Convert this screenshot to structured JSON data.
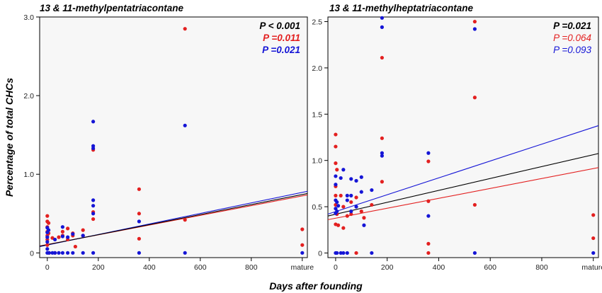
{
  "figure": {
    "ylabel": "Percentage of total CHCs",
    "xlabel": "Days after founding"
  },
  "colors": {
    "all": "#000000",
    "red": "#e32020",
    "blue": "#1515d6",
    "plot_bg": "#f7f7f7"
  },
  "chart_data": [
    {
      "type": "scatter",
      "title": "13 & 11-methylpentatriacontane",
      "xlim": [
        -30,
        1020
      ],
      "ylim": [
        -0.06,
        3.0
      ],
      "x_ticks": [
        0,
        200,
        400,
        600,
        800,
        1000
      ],
      "x_tick_labels": [
        "0",
        "200",
        "400",
        "600",
        "800",
        "mature"
      ],
      "y_ticks": [
        0,
        1,
        2,
        3
      ],
      "y_tick_labels": [
        "0",
        "1.0",
        "2.0",
        "3.0"
      ],
      "grid": false,
      "legend_position": "top-right",
      "p_values": [
        {
          "text": "P < 0.001",
          "color": "#000000",
          "bold": true
        },
        {
          "text": "P =0.011",
          "color": "#e32020",
          "bold": true
        },
        {
          "text": "P =0.021",
          "color": "#1515d6",
          "bold": true
        }
      ],
      "series": [
        {
          "color": "#e32020",
          "points": [
            [
              0,
              0.47
            ],
            [
              0,
              0.4
            ],
            [
              0,
              0.33
            ],
            [
              0,
              0.27
            ],
            [
              0,
              0.22
            ],
            [
              0,
              0.17
            ],
            [
              0,
              0.1
            ],
            [
              5,
              0.38
            ],
            [
              5,
              0.25
            ],
            [
              7,
              0.0
            ],
            [
              20,
              0.19
            ],
            [
              30,
              0.0
            ],
            [
              45,
              0.2
            ],
            [
              60,
              0.27
            ],
            [
              60,
              0.22
            ],
            [
              80,
              0.31
            ],
            [
              80,
              0.17
            ],
            [
              100,
              0.25
            ],
            [
              100,
              0.22
            ],
            [
              110,
              0.08
            ],
            [
              140,
              0.29
            ],
            [
              140,
              0.22
            ],
            [
              180,
              1.31
            ],
            [
              180,
              0.52
            ],
            [
              180,
              0.43
            ],
            [
              360,
              0.81
            ],
            [
              360,
              0.5
            ],
            [
              360,
              0.18
            ],
            [
              540,
              2.85
            ],
            [
              540,
              0.42
            ],
            [
              1000,
              0.3
            ],
            [
              1000,
              0.1
            ]
          ],
          "fit": [
            [
              -30,
              0.088
            ],
            [
              1090,
              0.78
            ]
          ]
        },
        {
          "color": "#1515d6",
          "points": [
            [
              0,
              0.32
            ],
            [
              0,
              0.26
            ],
            [
              0,
              0.2
            ],
            [
              0,
              0.14
            ],
            [
              0,
              0.05
            ],
            [
              0,
              0.0
            ],
            [
              5,
              0.29
            ],
            [
              7,
              0.0
            ],
            [
              20,
              0.0
            ],
            [
              30,
              0.17
            ],
            [
              30,
              0.0
            ],
            [
              45,
              0.0
            ],
            [
              60,
              0.33
            ],
            [
              60,
              0.21
            ],
            [
              60,
              0.0
            ],
            [
              80,
              0.2
            ],
            [
              80,
              0.0
            ],
            [
              100,
              0.24
            ],
            [
              100,
              0.0
            ],
            [
              140,
              0.22
            ],
            [
              140,
              0.0
            ],
            [
              180,
              1.67
            ],
            [
              180,
              1.36
            ],
            [
              180,
              1.33
            ],
            [
              180,
              0.67
            ],
            [
              180,
              0.6
            ],
            [
              180,
              0.5
            ],
            [
              180,
              0.0
            ],
            [
              360,
              0.4
            ],
            [
              360,
              0.0
            ],
            [
              540,
              1.62
            ],
            [
              540,
              0.0
            ],
            [
              1000,
              0.0
            ]
          ],
          "fit": [
            [
              -30,
              0.08
            ],
            [
              1090,
              0.83
            ]
          ]
        },
        {
          "color": "#000000",
          "points": [],
          "fit": [
            [
              -30,
              0.085
            ],
            [
              1090,
              0.8
            ]
          ]
        }
      ]
    },
    {
      "type": "scatter",
      "title": "13 & 11-methylheptatriacontane",
      "xlim": [
        -30,
        1020
      ],
      "ylim": [
        -0.05,
        2.55
      ],
      "x_ticks": [
        0,
        200,
        400,
        600,
        800,
        1000
      ],
      "x_tick_labels": [
        "0",
        "200",
        "400",
        "600",
        "800",
        "mature"
      ],
      "y_ticks": [
        0,
        0.5,
        1.0,
        1.5,
        2.0,
        2.5
      ],
      "y_tick_labels": [
        "0",
        "0.5",
        "1.0",
        "1.5",
        "2.0",
        "2.5"
      ],
      "grid": false,
      "legend_position": "top-right",
      "p_values": [
        {
          "text": "P =0.021",
          "color": "#000000",
          "bold": true
        },
        {
          "text": "P =0.064",
          "color": "#e32020",
          "bold": false
        },
        {
          "text": "P =0.093",
          "color": "#1515d6",
          "bold": false
        }
      ],
      "series": [
        {
          "color": "#e32020",
          "points": [
            [
              0,
              1.28
            ],
            [
              0,
              1.15
            ],
            [
              0,
              0.97
            ],
            [
              0,
              0.72
            ],
            [
              0,
              0.62
            ],
            [
              0,
              0.52
            ],
            [
              0,
              0.31
            ],
            [
              5,
              0.9
            ],
            [
              5,
              0.42
            ],
            [
              10,
              0.3
            ],
            [
              20,
              0.62
            ],
            [
              30,
              0.5
            ],
            [
              30,
              0.27
            ],
            [
              45,
              0.4
            ],
            [
              60,
              0.55
            ],
            [
              60,
              0.42
            ],
            [
              80,
              0.6
            ],
            [
              80,
              0.0
            ],
            [
              100,
              0.45
            ],
            [
              110,
              0.38
            ],
            [
              140,
              0.52
            ],
            [
              180,
              2.11
            ],
            [
              180,
              1.24
            ],
            [
              180,
              0.77
            ],
            [
              360,
              0.99
            ],
            [
              360,
              0.56
            ],
            [
              360,
              0.1
            ],
            [
              360,
              0.0
            ],
            [
              540,
              2.5
            ],
            [
              540,
              1.68
            ],
            [
              540,
              0.52
            ],
            [
              1000,
              0.41
            ],
            [
              1000,
              0.16
            ]
          ],
          "fit": [
            [
              -30,
              0.36
            ],
            [
              1090,
              0.96
            ]
          ]
        },
        {
          "color": "#1515d6",
          "points": [
            [
              0,
              0.83
            ],
            [
              0,
              0.74
            ],
            [
              0,
              0.57
            ],
            [
              0,
              0.48
            ],
            [
              0,
              0.43
            ],
            [
              0,
              0.0
            ],
            [
              5,
              0.55
            ],
            [
              5,
              0.45
            ],
            [
              5,
              0.0
            ],
            [
              10,
              0.51
            ],
            [
              20,
              0.81
            ],
            [
              20,
              0.0
            ],
            [
              30,
              0.9
            ],
            [
              30,
              0.0
            ],
            [
              45,
              0.62
            ],
            [
              45,
              0.57
            ],
            [
              45,
              0.0
            ],
            [
              60,
              0.8
            ],
            [
              60,
              0.62
            ],
            [
              60,
              0.45
            ],
            [
              80,
              0.78
            ],
            [
              80,
              0.5
            ],
            [
              100,
              0.82
            ],
            [
              100,
              0.66
            ],
            [
              110,
              0.3
            ],
            [
              140,
              0.68
            ],
            [
              140,
              0.0
            ],
            [
              180,
              2.54
            ],
            [
              180,
              2.44
            ],
            [
              180,
              1.08
            ],
            [
              180,
              1.05
            ],
            [
              360,
              1.08
            ],
            [
              360,
              0.4
            ],
            [
              540,
              2.42
            ],
            [
              540,
              0.0
            ],
            [
              1000,
              0.0
            ]
          ],
          "fit": [
            [
              -30,
              0.42
            ],
            [
              1090,
              1.44
            ]
          ]
        },
        {
          "color": "#000000",
          "points": [],
          "fit": [
            [
              -30,
              0.4
            ],
            [
              1090,
              1.12
            ]
          ]
        }
      ]
    }
  ]
}
